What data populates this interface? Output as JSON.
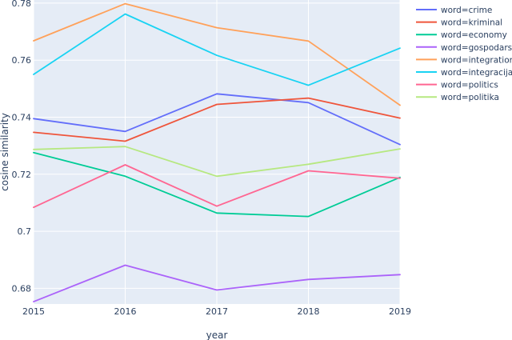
{
  "chart_data": {
    "type": "line",
    "title": "",
    "xlabel": "year",
    "ylabel": "cosine similarity",
    "x": [
      2015,
      2016,
      2017,
      2018,
      2019
    ],
    "x_tick_labels": [
      "2015",
      "2016",
      "2017",
      "2018",
      "2019"
    ],
    "y_ticks": [
      0.68,
      0.7,
      0.72,
      0.74,
      0.76,
      0.78
    ],
    "y_tick_labels": [
      "0.68",
      "0.7",
      "0.72",
      "0.74",
      "0.76",
      "0.78"
    ],
    "xlim": [
      2015,
      2019
    ],
    "ylim": [
      0.6745,
      0.7811
    ],
    "grid": true,
    "legend_position": "right",
    "series": [
      {
        "name": "word=crime",
        "color": "#636efa",
        "values": [
          0.7395,
          0.735,
          0.7482,
          0.7451,
          0.7304
        ]
      },
      {
        "name": "word=kriminal",
        "color": "#ef553b",
        "values": [
          0.7347,
          0.7316,
          0.7445,
          0.7467,
          0.7397
        ]
      },
      {
        "name": "word=economy",
        "color": "#00cc96",
        "values": [
          0.7276,
          0.7193,
          0.7064,
          0.7052,
          0.7189
        ]
      },
      {
        "name": "word=gospodarstvo",
        "color": "#ab63fa",
        "values": [
          0.6753,
          0.6881,
          0.6794,
          0.6831,
          0.6848
        ]
      },
      {
        "name": "word=integration",
        "color": "#ffa15a",
        "values": [
          0.7668,
          0.7798,
          0.7714,
          0.7667,
          0.7442
        ]
      },
      {
        "name": "word=integracija",
        "color": "#19d3f3",
        "values": [
          0.755,
          0.7762,
          0.7617,
          0.7512,
          0.7642
        ]
      },
      {
        "name": "word=politics",
        "color": "#ff6692",
        "values": [
          0.7084,
          0.7233,
          0.7088,
          0.7212,
          0.7186
        ]
      },
      {
        "name": "word=politika",
        "color": "#b6e880",
        "values": [
          0.7287,
          0.7297,
          0.7193,
          0.7235,
          0.7289
        ]
      }
    ]
  },
  "colors": {
    "plot_background": "#e5ecf6",
    "grid": "#ffffff",
    "text": "#2a3f5f"
  }
}
